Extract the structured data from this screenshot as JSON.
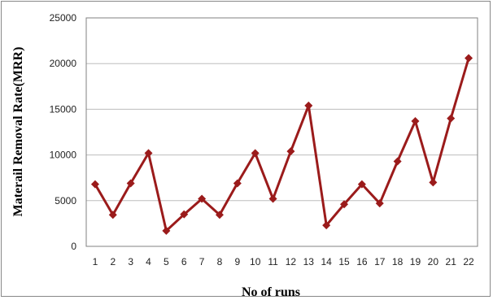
{
  "chart_data": {
    "type": "line",
    "title": "",
    "xlabel": "No of runs",
    "ylabel": "Materail Removal Rate(MRR)",
    "ylim": [
      0,
      25000
    ],
    "yticks": [
      "0",
      "5000",
      "10000",
      "15000",
      "20000",
      "25000"
    ],
    "categories": [
      "1",
      "2",
      "3",
      "4",
      "5",
      "6",
      "7",
      "8",
      "9",
      "10",
      "11",
      "12",
      "13",
      "14",
      "15",
      "16",
      "17",
      "18",
      "19",
      "20",
      "21",
      "22"
    ],
    "series": [
      {
        "values": [
          6800,
          3450,
          6900,
          10200,
          1700,
          3500,
          5200,
          3450,
          6900,
          10200,
          5200,
          10400,
          15400,
          2300,
          4600,
          6800,
          4700,
          9300,
          13700,
          7000,
          14000,
          20600
        ]
      }
    ],
    "grid": true,
    "legend": "none",
    "colors": {
      "line": "#9b1b1b",
      "grid": "#bdbdbd",
      "axis": "#808080"
    }
  }
}
